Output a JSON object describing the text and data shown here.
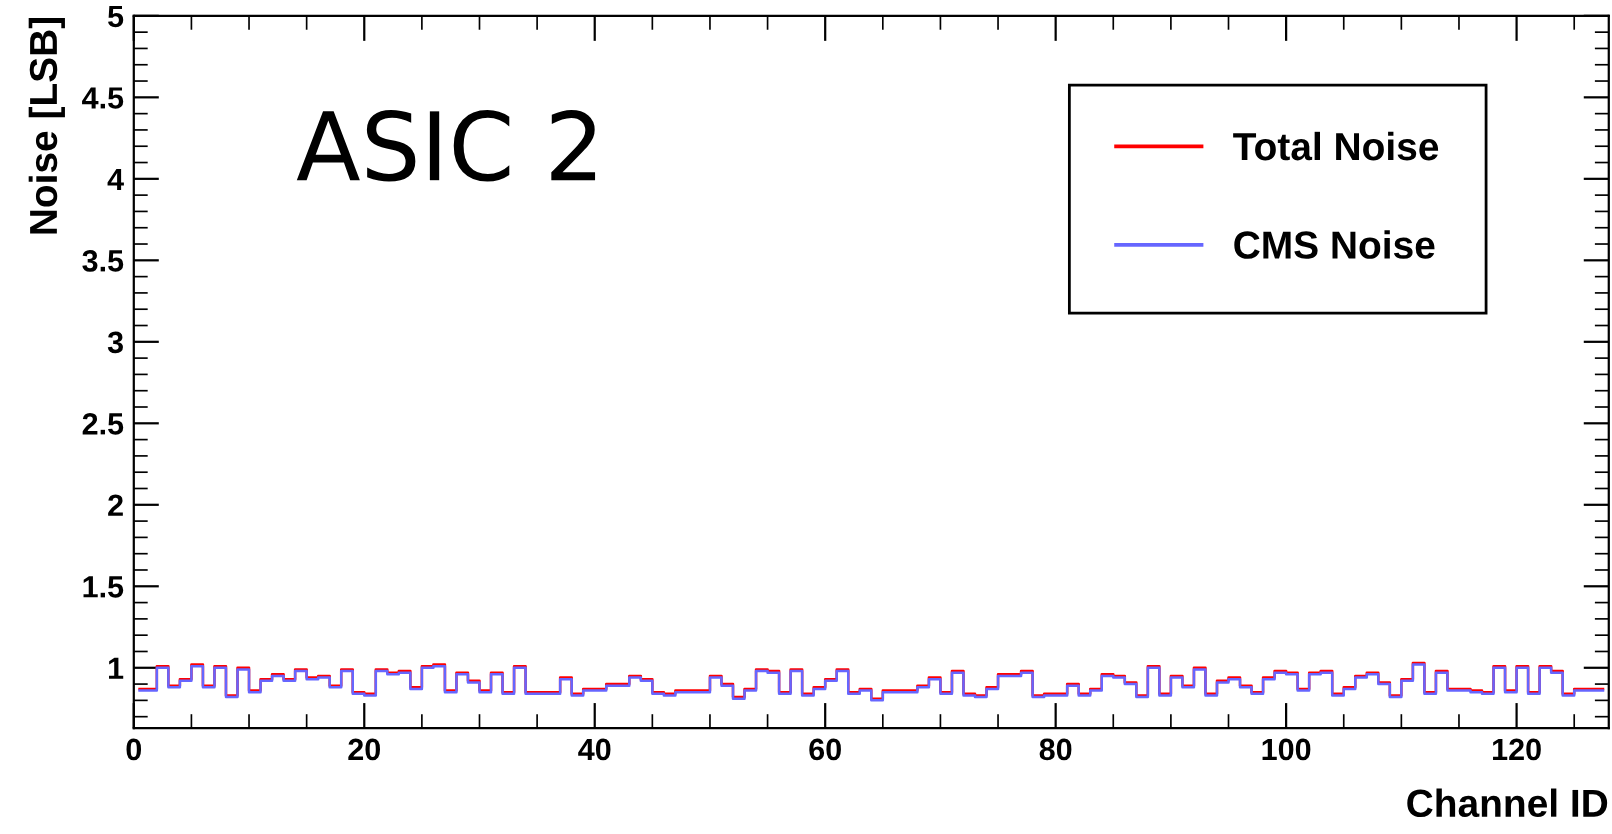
{
  "chart_data": {
    "type": "step",
    "xlabel": "Channel ID",
    "ylabel": "Noise [LSB]",
    "annotations": [
      "ASIC 2"
    ],
    "x": [
      0.5,
      1.5,
      2.5,
      3.5,
      4.5,
      5.5,
      6.5,
      7.5,
      8.5,
      9.5,
      10.5,
      11.5,
      12.5,
      13.5,
      14.5,
      15.5,
      16.5,
      17.5,
      18.5,
      19.5,
      20.5,
      21.5,
      22.5,
      23.5,
      24.5,
      25.5,
      26.5,
      27.5,
      28.5,
      29.5,
      30.5,
      31.5,
      32.5,
      33.5,
      34.5,
      35.5,
      36.5,
      37.5,
      38.5,
      39.5,
      40.5,
      41.5,
      42.5,
      43.5,
      44.5,
      45.5,
      46.5,
      47.5,
      48.5,
      49.5,
      50.5,
      51.5,
      52.5,
      53.5,
      54.5,
      55.5,
      56.5,
      57.5,
      58.5,
      59.5,
      60.5,
      61.5,
      62.5,
      63.5,
      64.5,
      65.5,
      66.5,
      67.5,
      68.5,
      69.5,
      70.5,
      71.5,
      72.5,
      73.5,
      74.5,
      75.5,
      76.5,
      77.5,
      78.5,
      79.5,
      80.5,
      81.5,
      82.5,
      83.5,
      84.5,
      85.5,
      86.5,
      87.5,
      88.5,
      89.5,
      90.5,
      91.5,
      92.5,
      93.5,
      94.5,
      95.5,
      96.5,
      97.5,
      98.5,
      99.5,
      100.5,
      101.5,
      102.5,
      103.5,
      104.5,
      105.5,
      106.5,
      107.5,
      108.5,
      109.5,
      110.5,
      111.5,
      112.5,
      113.5,
      114.5,
      115.5,
      116.5,
      117.5,
      118.5,
      119.5,
      120.5,
      121.5,
      122.5,
      123.5,
      124.5,
      125.5,
      126.5,
      127.5
    ],
    "series": [
      {
        "name": "Total Noise",
        "color": "#ff0000",
        "values": [
          0.87,
          0.87,
          1.01,
          0.89,
          0.93,
          1.02,
          0.89,
          1.01,
          0.83,
          1.0,
          0.86,
          0.93,
          0.96,
          0.93,
          0.99,
          0.94,
          0.95,
          0.89,
          0.99,
          0.85,
          0.84,
          0.99,
          0.97,
          0.98,
          0.88,
          1.01,
          1.02,
          0.86,
          0.97,
          0.92,
          0.86,
          0.97,
          0.85,
          1.01,
          0.85,
          0.85,
          0.85,
          0.94,
          0.84,
          0.87,
          0.87,
          0.9,
          0.9,
          0.95,
          0.93,
          0.85,
          0.84,
          0.86,
          0.86,
          0.86,
          0.95,
          0.9,
          0.82,
          0.87,
          0.99,
          0.98,
          0.85,
          0.99,
          0.84,
          0.88,
          0.93,
          0.99,
          0.85,
          0.87,
          0.81,
          0.86,
          0.86,
          0.86,
          0.89,
          0.94,
          0.85,
          0.98,
          0.84,
          0.83,
          0.88,
          0.96,
          0.96,
          0.98,
          0.83,
          0.84,
          0.84,
          0.9,
          0.84,
          0.87,
          0.96,
          0.95,
          0.91,
          0.83,
          1.01,
          0.84,
          0.95,
          0.89,
          1.0,
          0.84,
          0.92,
          0.94,
          0.89,
          0.85,
          0.94,
          0.98,
          0.97,
          0.87,
          0.97,
          0.98,
          0.84,
          0.88,
          0.95,
          0.97,
          0.91,
          0.83,
          0.93,
          1.03,
          0.85,
          0.98,
          0.87,
          0.87,
          0.86,
          0.85,
          1.01,
          0.86,
          1.01,
          0.85,
          1.01,
          0.98,
          0.84,
          0.87,
          0.87,
          0.87
        ]
      },
      {
        "name": "CMS Noise",
        "color": "#6666ff",
        "values": [
          0.86,
          0.86,
          1.0,
          0.88,
          0.92,
          1.01,
          0.88,
          1.0,
          0.82,
          0.99,
          0.85,
          0.92,
          0.95,
          0.92,
          0.98,
          0.93,
          0.94,
          0.88,
          0.98,
          0.84,
          0.83,
          0.98,
          0.96,
          0.97,
          0.87,
          1.0,
          1.01,
          0.85,
          0.96,
          0.91,
          0.85,
          0.96,
          0.84,
          1.0,
          0.84,
          0.84,
          0.84,
          0.93,
          0.83,
          0.86,
          0.86,
          0.89,
          0.89,
          0.94,
          0.92,
          0.84,
          0.83,
          0.85,
          0.85,
          0.85,
          0.94,
          0.89,
          0.81,
          0.86,
          0.98,
          0.97,
          0.84,
          0.98,
          0.83,
          0.87,
          0.92,
          0.98,
          0.84,
          0.86,
          0.8,
          0.85,
          0.85,
          0.85,
          0.88,
          0.93,
          0.84,
          0.97,
          0.83,
          0.82,
          0.87,
          0.95,
          0.95,
          0.97,
          0.82,
          0.83,
          0.83,
          0.89,
          0.83,
          0.86,
          0.95,
          0.94,
          0.9,
          0.82,
          1.0,
          0.83,
          0.94,
          0.88,
          0.99,
          0.83,
          0.91,
          0.93,
          0.88,
          0.84,
          0.93,
          0.97,
          0.96,
          0.86,
          0.96,
          0.97,
          0.83,
          0.87,
          0.94,
          0.96,
          0.9,
          0.82,
          0.92,
          1.02,
          0.84,
          0.97,
          0.86,
          0.86,
          0.85,
          0.84,
          1.0,
          0.85,
          1.0,
          0.84,
          1.0,
          0.97,
          0.83,
          0.86,
          0.86,
          0.86
        ]
      }
    ],
    "xlim": [
      0,
      128
    ],
    "ylim": [
      0.63,
      5
    ],
    "xticks": [
      0,
      20,
      40,
      60,
      80,
      100,
      120
    ],
    "yticks": [
      1,
      1.5,
      2,
      2.5,
      3,
      3.5,
      4,
      4.5,
      5
    ],
    "legend": "top right",
    "grid": false
  }
}
